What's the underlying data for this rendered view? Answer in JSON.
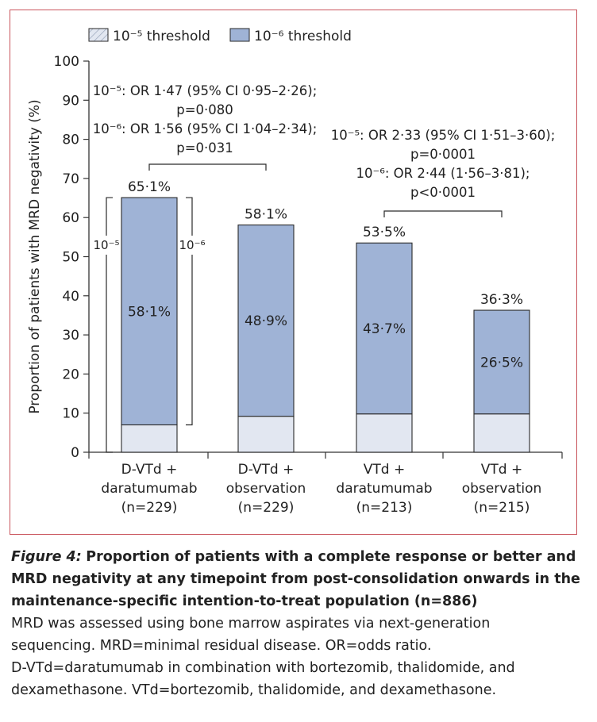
{
  "chart_data": {
    "type": "bar",
    "stacked": true,
    "ylabel": "Proportion of patients with MRD negativity (%)",
    "ylim": [
      0,
      100
    ],
    "yticks": [
      "0",
      "10",
      "20",
      "30",
      "40",
      "50",
      "60",
      "70",
      "80",
      "90",
      "100"
    ],
    "grid": false,
    "legend_position": "top-left",
    "legend": [
      {
        "key": "e5",
        "label": "10⁻⁵ threshold",
        "pattern": "hatched"
      },
      {
        "key": "e6",
        "label": "10⁻⁶ threshold",
        "pattern": "solid"
      }
    ],
    "categories": [
      {
        "lines": [
          "D-VTd +",
          "daratumumab",
          "(n=229)"
        ]
      },
      {
        "lines": [
          "D-VTd +",
          "observation",
          "(n=229)"
        ]
      },
      {
        "lines": [
          "VTd +",
          "daratumumab",
          "(n=213)"
        ]
      },
      {
        "lines": [
          "VTd +",
          "observation",
          "(n=215)"
        ]
      }
    ],
    "values_1e5": [
      65.1,
      58.1,
      53.5,
      36.3
    ],
    "values_1e6": [
      58.1,
      48.9,
      43.7,
      26.5
    ],
    "labels_1e5": [
      "65·1%",
      "58·1%",
      "53·5%",
      "36·3%"
    ],
    "labels_1e6": [
      "58·1%",
      "48·9%",
      "43·7%",
      "26·5%"
    ],
    "bracket_labels": {
      "left": "10⁻⁵",
      "right": "10⁻⁶"
    },
    "comparisons": [
      {
        "lines": [
          "10⁻⁵: OR 1·47 (95% CI 0·95–2·26);",
          "p=0·080",
          "10⁻⁶: OR 1·56 (95% CI 1·04–2·34);",
          "p=0·031"
        ],
        "bars": [
          0,
          1
        ]
      },
      {
        "lines": [
          "10⁻⁵: OR 2·33 (95% CI 1·51–3·60);",
          "p=0·0001",
          "10⁻⁶: OR 2·44 (1·56–3·81);",
          "p<0·0001"
        ],
        "bars": [
          2,
          3
        ]
      }
    ],
    "colors": {
      "e6_fill": "#9fb3d6",
      "e5_fill": "#e2e7f1",
      "bar_stroke": "#2a2a2a",
      "axis": "#333333",
      "frame": "#c9545c"
    }
  },
  "caption": {
    "label": "Figure 4:",
    "title": "Proportion of patients with a complete response or better and MRD negativity at any timepoint from post-consolidation onwards in the maintenance-specific intention-to-treat population (n=886)",
    "body_lines": [
      "MRD was assessed using bone marrow aspirates via next-generation",
      "sequencing. MRD=minimal residual disease. OR=odds ratio.",
      "D-VTd=daratumumab in combination with bortezomib, thalidomide, and",
      "dexamethasone. VTd=bortezomib, thalidomide, and dexamethasone."
    ]
  }
}
